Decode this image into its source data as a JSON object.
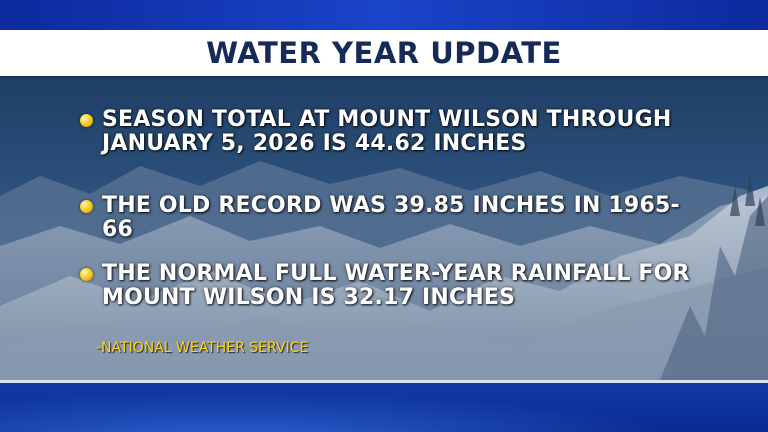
{
  "title": "WATER YEAR UPDATE",
  "bullets": [
    {
      "text": "SEASON TOTAL AT MOUNT WILSON THROUGH JANUARY 5, 2026 IS 44.62 INCHES"
    },
    {
      "text": "THE OLD RECORD WAS 39.85 INCHES IN 1965-66"
    },
    {
      "text": "THE NORMAL FULL WATER-YEAR RAINFALL FOR MOUNT WILSON IS 32.17 INCHES"
    }
  ],
  "source": "-NATIONAL WEATHER SERVICE",
  "colors": {
    "title_text": "#162a57",
    "bullet_dot": "#f6cf2a",
    "source_text": "#ffd21e",
    "frame_blue": "#0c2a9a"
  }
}
